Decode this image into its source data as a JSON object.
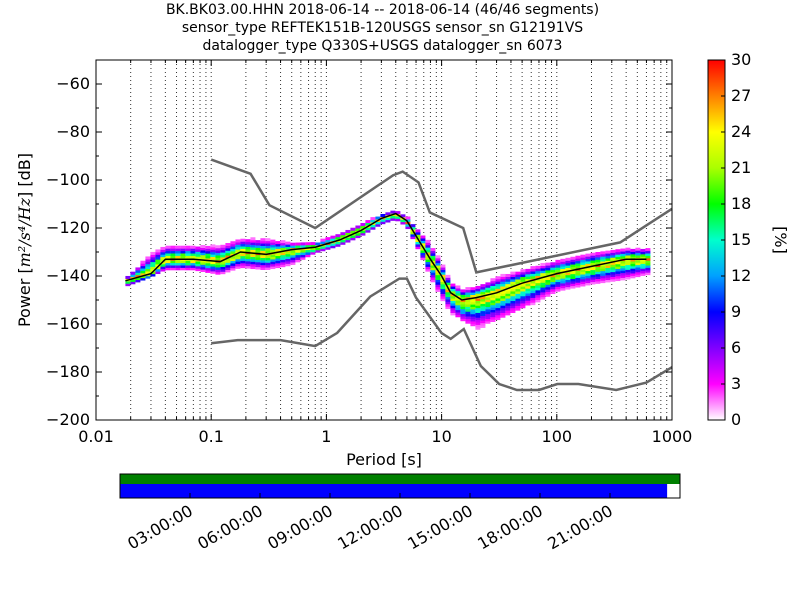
{
  "title_lines": [
    "BK.BK03.00.HHN   2018-06-14 -- 2018-06-14  (46/46 segments)",
    "sensor_type REFTEK151B-120USGS sensor_sn G12191VS",
    "datalogger_type Q330S+USGS datalogger_sn 6073"
  ],
  "chart_data": {
    "type": "heatmap",
    "xlabel": "Period [s]",
    "ylabel_prefix": "Power [",
    "ylabel_math": "m²/s⁴/Hz",
    "ylabel_suffix": "] [dB]",
    "xscale": "log",
    "xlim": [
      0.01,
      1000
    ],
    "ylim": [
      -200,
      -50
    ],
    "x_ticks": [
      {
        "value": 0.01,
        "label": "0.01"
      },
      {
        "value": 0.1,
        "label": "0.1"
      },
      {
        "value": 1,
        "label": "1"
      },
      {
        "value": 10,
        "label": "10"
      },
      {
        "value": 100,
        "label": "100"
      },
      {
        "value": 1000,
        "label": "1000"
      }
    ],
    "y_ticks": [
      {
        "value": -60,
        "label": "−60"
      },
      {
        "value": -80,
        "label": "−80"
      },
      {
        "value": -100,
        "label": "−100"
      },
      {
        "value": -120,
        "label": "−120"
      },
      {
        "value": -140,
        "label": "−140"
      },
      {
        "value": -160,
        "label": "−160"
      },
      {
        "value": -180,
        "label": "−180"
      },
      {
        "value": -200,
        "label": "−200"
      }
    ],
    "grid": "dotted, vertical lines at minor log periods",
    "colorbar": {
      "label": "[%]",
      "range": [
        0,
        30
      ],
      "ticks": [
        "0",
        "3",
        "6",
        "9",
        "12",
        "15",
        "18",
        "21",
        "24",
        "27",
        "30"
      ],
      "colors": [
        "#ffffff",
        "#ff00ff",
        "#8000ff",
        "#0000ff",
        "#00a0ff",
        "#00ffcc",
        "#00ff00",
        "#aaff00",
        "#ffff00",
        "#ff8000",
        "#ff0000"
      ]
    },
    "noise_model_high": {
      "x": [
        0.1,
        0.22,
        0.32,
        0.8,
        3.8,
        4.6,
        6.3,
        7.9,
        15.4,
        20,
        354.8,
        1000
      ],
      "y": [
        -91.5,
        -97.4,
        -110.5,
        -120,
        -98,
        -96.5,
        -101,
        -113.5,
        -120,
        -138.5,
        -126,
        -112
      ]
    },
    "noise_model_low": {
      "x": [
        0.1,
        0.17,
        0.4,
        0.8,
        1.24,
        2.4,
        4.3,
        5,
        6,
        10,
        12,
        15.6,
        21.9,
        31.6,
        45,
        70,
        101,
        154,
        328,
        600,
        1000
      ],
      "y": [
        -168,
        -166.7,
        -166.7,
        -169.2,
        -163.7,
        -148.6,
        -141.1,
        -141.1,
        -149,
        -163.8,
        -166.2,
        -162.1,
        -177.5,
        -185,
        -187.5,
        -187.5,
        -185,
        -185,
        -187.5,
        -184.4,
        -178
      ]
    },
    "mean_psd": {
      "x": [
        0.018,
        0.03,
        0.04,
        0.07,
        0.12,
        0.18,
        0.3,
        0.5,
        0.8,
        1.3,
        2,
        3,
        4,
        5,
        6.5,
        8,
        10,
        12,
        15,
        20,
        30,
        50,
        100,
        200,
        400,
        600
      ],
      "y": [
        -142,
        -139,
        -133,
        -133,
        -134,
        -130,
        -131,
        -129,
        -128,
        -125,
        -121,
        -116,
        -114,
        -117,
        -126,
        -133,
        -140,
        -147,
        -150,
        -149,
        -147,
        -143,
        -139,
        -136,
        -133,
        -133
      ]
    },
    "psd_spread": [
      {
        "x": 0.018,
        "lo": -145,
        "hi": -141
      },
      {
        "x": 0.03,
        "lo": -141,
        "hi": -130
      },
      {
        "x": 0.04,
        "lo": -138,
        "hi": -127
      },
      {
        "x": 0.07,
        "lo": -138,
        "hi": -127
      },
      {
        "x": 0.12,
        "lo": -140,
        "hi": -127
      },
      {
        "x": 0.18,
        "lo": -137,
        "hi": -124
      },
      {
        "x": 0.3,
        "lo": -138,
        "hi": -124
      },
      {
        "x": 0.5,
        "lo": -136,
        "hi": -126
      },
      {
        "x": 0.8,
        "lo": -131,
        "hi": -126
      },
      {
        "x": 1.3,
        "lo": -128,
        "hi": -122
      },
      {
        "x": 2,
        "lo": -124,
        "hi": -118
      },
      {
        "x": 3,
        "lo": -119,
        "hi": -114
      },
      {
        "x": 4,
        "lo": -117,
        "hi": -113
      },
      {
        "x": 5,
        "lo": -120,
        "hi": -115
      },
      {
        "x": 6.5,
        "lo": -131,
        "hi": -121
      },
      {
        "x": 8,
        "lo": -141,
        "hi": -126
      },
      {
        "x": 10,
        "lo": -150,
        "hi": -134
      },
      {
        "x": 12,
        "lo": -156,
        "hi": -142
      },
      {
        "x": 15,
        "lo": -160,
        "hi": -145
      },
      {
        "x": 20,
        "lo": -163,
        "hi": -144
      },
      {
        "x": 30,
        "lo": -160,
        "hi": -140
      },
      {
        "x": 50,
        "lo": -155,
        "hi": -137
      },
      {
        "x": 100,
        "lo": -147,
        "hi": -133
      },
      {
        "x": 200,
        "lo": -144,
        "hi": -130
      },
      {
        "x": 400,
        "lo": -142,
        "hi": -128
      },
      {
        "x": 600,
        "lo": -140,
        "hi": -128
      }
    ],
    "timeline": {
      "tick_labels": [
        "03:00:00",
        "06:00:00",
        "09:00:00",
        "12:00:00",
        "15:00:00",
        "18:00:00",
        "21:00:00"
      ],
      "data_coverage_fraction": 1.0,
      "psd_coverage_fraction": 0.977,
      "colors": {
        "data": "#008000",
        "psd": "#0000ff"
      }
    }
  }
}
